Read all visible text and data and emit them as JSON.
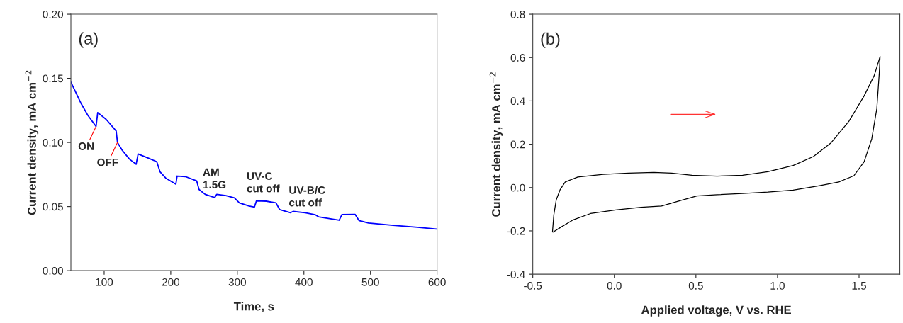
{
  "chart_data": [
    {
      "type": "line",
      "xlabel": "Time, s",
      "ylabel": "Current density, mA cm$^{−2}$",
      "x": [
        50,
        64.7,
        75.7,
        87.8,
        90.3,
        103,
        118,
        120,
        127,
        138,
        148,
        151,
        165.5,
        179,
        184,
        193,
        207.7,
        209.5,
        222,
        239,
        242.5,
        251.7,
        266,
        269,
        282.8,
        295.7,
        303,
        317.7,
        325.7,
        328.7,
        343.3,
        358,
        363.5,
        380,
        383.7,
        402,
        416.7,
        422,
        453,
        457,
        477,
        482.7,
        497,
        534,
        570.7,
        599
      ],
      "series": [
        {
          "color": "#0000ff",
          "values": [
            0.147,
            0.131,
            0.121,
            0.1125,
            0.1233,
            0.118,
            0.109,
            0.1,
            0.094,
            0.087,
            0.083,
            0.091,
            0.088,
            0.085,
            0.077,
            0.072,
            0.0675,
            0.0738,
            0.0734,
            0.07,
            0.0633,
            0.0595,
            0.057,
            0.0595,
            0.0586,
            0.0567,
            0.0529,
            0.0504,
            0.0496,
            0.0544,
            0.0542,
            0.0529,
            0.0477,
            0.0452,
            0.0462,
            0.0452,
            0.0437,
            0.042,
            0.0393,
            0.0437,
            0.0439,
            0.0391,
            0.0372,
            0.0353,
            0.0338,
            0.0325
          ]
        }
      ],
      "xlim": [
        50,
        600
      ],
      "xticks": [
        100,
        200,
        300,
        400,
        500,
        600
      ],
      "ylim": [
        0,
        0.2
      ],
      "yticks": [
        {
          "value": 0,
          "label": "0.00"
        },
        {
          "value": 0.05,
          "label": "0.05"
        },
        {
          "value": 0.1,
          "label": "0.10"
        },
        {
          "value": 0.15,
          "label": "0.15"
        },
        {
          "value": 0.2,
          "label": "0.20"
        }
      ],
      "grid": false,
      "legend": false,
      "marker": "none",
      "line_style": "solid",
      "annotations": [
        "(a)",
        {
          "text": "ON",
          "x": 87.8,
          "y": 0.1125
        },
        {
          "text": "OFF",
          "x": 120,
          "y": 0.1
        },
        "AM\n1.5G",
        "UV-C\ncut off",
        "UV-B/C\ncut off"
      ]
    },
    {
      "type": "line",
      "xlabel": "Applied voltage, V vs. RHE",
      "ylabel": "Current density, mA cm$^{−2}$",
      "x": [
        -0.379,
        -0.371,
        -0.356,
        -0.332,
        -0.301,
        -0.224,
        -0.068,
        0.087,
        0.242,
        0.351,
        0.475,
        0.63,
        0.786,
        0.941,
        1.096,
        1.22,
        1.329,
        1.438,
        1.531,
        1.593,
        1.629,
        1.624,
        1.609,
        1.578,
        1.531,
        1.469,
        1.376,
        1.252,
        1.096,
        0.941,
        0.786,
        0.63,
        0.506,
        0.413,
        0.289,
        0.165,
        0.009,
        -0.146,
        -0.255,
        -0.332,
        -0.376
      ],
      "series": [
        {
          "color": "#000000",
          "values": [
            -0.202,
            -0.126,
            -0.056,
            -0.009,
            0.026,
            0.049,
            0.061,
            0.067,
            0.07,
            0.067,
            0.057,
            0.053,
            0.057,
            0.073,
            0.102,
            0.143,
            0.207,
            0.306,
            0.423,
            0.517,
            0.605,
            0.529,
            0.365,
            0.225,
            0.119,
            0.055,
            0.026,
            0.008,
            -0.012,
            -0.021,
            -0.027,
            -0.033,
            -0.039,
            -0.058,
            -0.085,
            -0.091,
            -0.103,
            -0.12,
            -0.15,
            -0.185,
            -0.206
          ]
        }
      ],
      "xlim": [
        -0.5,
        1.75
      ],
      "xticks": [
        -0.5,
        {
          "value": 0,
          "label": "0.0"
        },
        0.5,
        {
          "value": 1,
          "label": "1.0"
        },
        1.5
      ],
      "ylim": [
        -0.4,
        0.8
      ],
      "yticks": [
        -0.4,
        -0.2,
        {
          "value": 0,
          "label": "0.0"
        },
        0.2,
        0.4,
        0.6,
        0.8
      ],
      "grid": false,
      "legend": false,
      "marker": "none",
      "line_style": "solid",
      "annotations": [
        "(b)"
      ]
    }
  ]
}
